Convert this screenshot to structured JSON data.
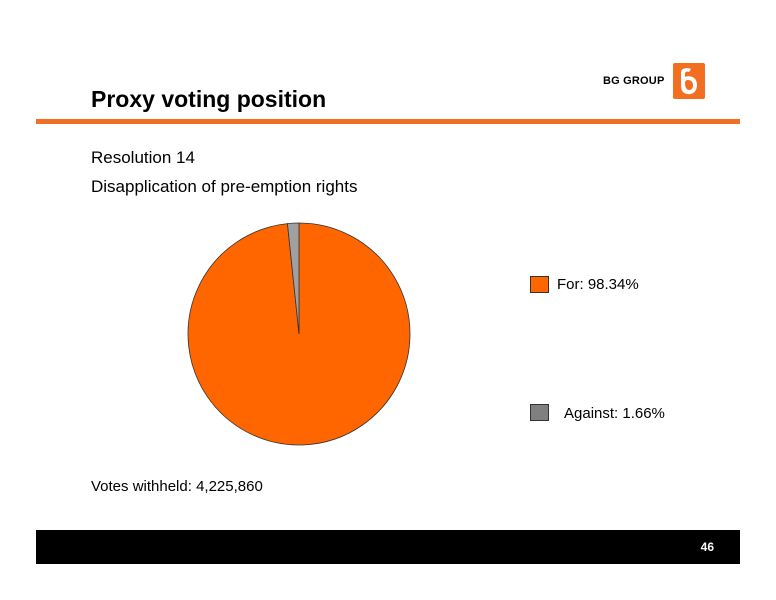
{
  "header": {
    "title": "Proxy voting position",
    "logo_text": "BG GROUP",
    "brand_color": "#f26f21"
  },
  "subtitle": {
    "line1": "Resolution 14",
    "line2": "Disapplication of pre-emption rights"
  },
  "chart_data": {
    "type": "pie",
    "categories": [
      "For",
      "Against"
    ],
    "values": [
      98.34,
      1.66
    ],
    "colors": [
      "#ff6600",
      "#a0a0a0"
    ],
    "legend": [
      {
        "label": "For: 98.34%",
        "color": "#ff6600"
      },
      {
        "label": "Against: 1.66%",
        "color": "#808080"
      }
    ],
    "legend_position": "right",
    "title": ""
  },
  "note": "Votes withheld: 4,225,860",
  "footer": {
    "page_number": "46"
  }
}
